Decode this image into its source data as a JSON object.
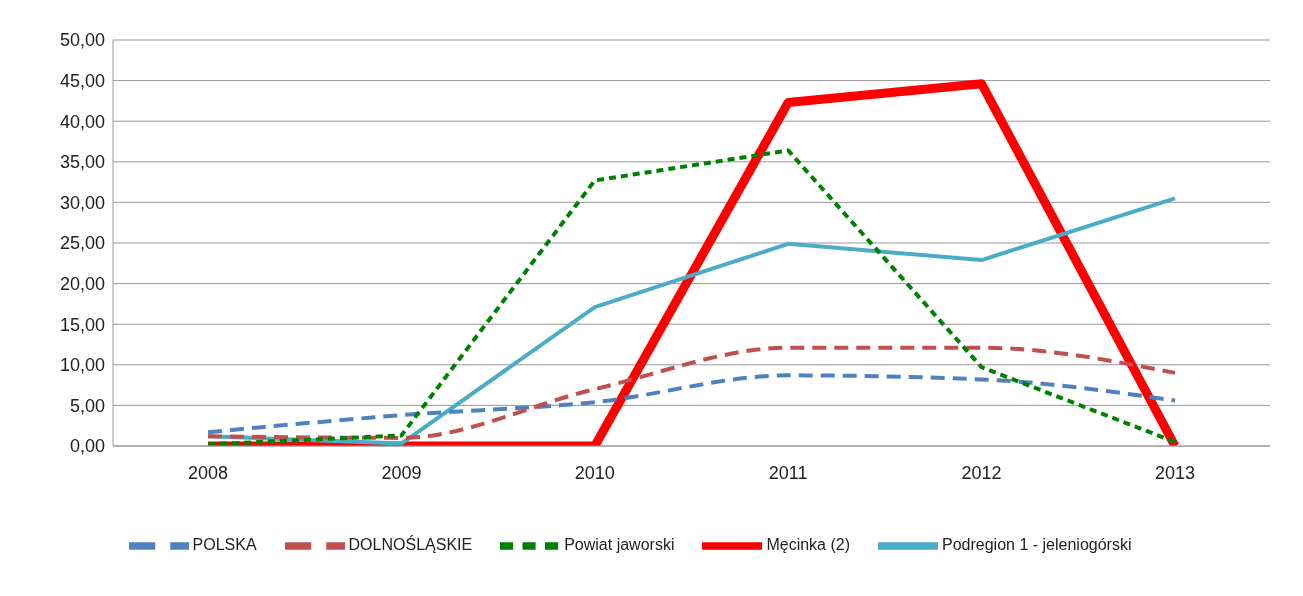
{
  "chart_data": {
    "type": "line",
    "categories": [
      "2008",
      "2009",
      "2010",
      "2011",
      "2012",
      "2013"
    ],
    "series": [
      {
        "name": "POLSKA",
        "color": "#4f81bd",
        "line_style": "dashed",
        "values": [
          1.7,
          3.8,
          5.4,
          8.7,
          8.2,
          5.6
        ]
      },
      {
        "name": "DOLNOŚLĄSKIE",
        "color": "#c0504d",
        "line_style": "dashed",
        "values": [
          1.2,
          1.0,
          7.0,
          12.1,
          12.1,
          9.0
        ]
      },
      {
        "name": "Powiat jaworski",
        "color": "#008000",
        "line_style": "dotted",
        "values": [
          0.2,
          1.3,
          32.7,
          36.4,
          9.7,
          0.5
        ]
      },
      {
        "name": "Męcinka (2)",
        "color": "#ff0000",
        "line_style": "solid",
        "values": [
          0,
          0,
          0,
          42.3,
          44.6,
          0
        ]
      },
      {
        "name": "Podregion 1 - jeleniogórski",
        "color": "#4bacc6",
        "line_style": "solid",
        "values": [
          1.2,
          0.3,
          17.1,
          24.9,
          22.9,
          30.5
        ]
      }
    ],
    "ylim": [
      0,
      50
    ],
    "yticks": [
      {
        "value": 0,
        "label": "0,00"
      },
      {
        "value": 5,
        "label": "5,00"
      },
      {
        "value": 10,
        "label": "10,00"
      },
      {
        "value": 15,
        "label": "15,00"
      },
      {
        "value": 20,
        "label": "20,00"
      },
      {
        "value": 25,
        "label": "25,00"
      },
      {
        "value": 30,
        "label": "30,00"
      },
      {
        "value": 35,
        "label": "35,00"
      },
      {
        "value": 40,
        "label": "40,00"
      },
      {
        "value": 45,
        "label": "45,00"
      },
      {
        "value": 50,
        "label": "50,00"
      }
    ],
    "grid": "y",
    "legend": "bottom",
    "marker": "none"
  }
}
